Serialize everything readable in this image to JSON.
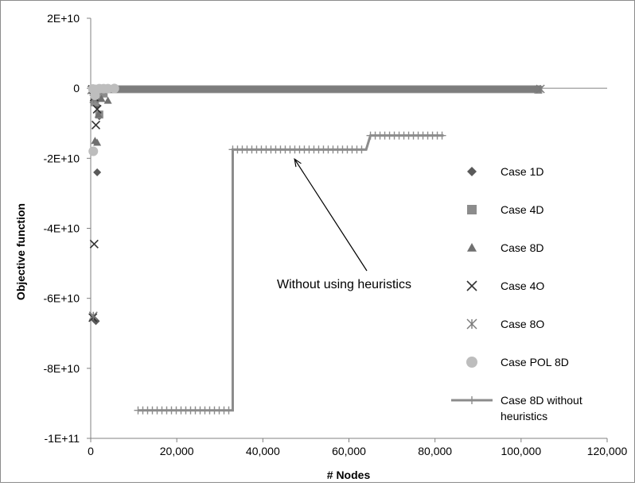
{
  "chart_data": {
    "type": "scatter",
    "xlabel": "# Nodes",
    "ylabel": "Objective function",
    "xlim": [
      0,
      120000
    ],
    "ylim": [
      -100000000000,
      20000000000
    ],
    "x_ticks": [
      0,
      20000,
      40000,
      60000,
      80000,
      100000,
      120000
    ],
    "x_tick_labels": [
      "0",
      "20,000",
      "40,000",
      "60,000",
      "80,000",
      "100,000",
      "120,000"
    ],
    "y_ticks": [
      20000000000,
      0,
      -20000000000,
      -40000000000,
      -60000000000,
      -80000000000,
      -100000000000
    ],
    "y_tick_labels": [
      "2E+10",
      "0",
      "-2E+10",
      "-4E+10",
      "-6E+10",
      "-8E+10",
      "-1E+11"
    ],
    "grid": false,
    "legend_position": "right",
    "annotation": {
      "text": "Without using heuristics",
      "x": 47000,
      "y": -17500000000
    },
    "series": [
      {
        "name": "Case 1D",
        "marker": "diamond",
        "color": "#5a5a5a",
        "points": [
          [
            600,
            -500000000
          ],
          [
            1000,
            -1500000000
          ],
          [
            1200,
            -3000000000
          ],
          [
            1500,
            -5000000000
          ],
          [
            2000,
            -8000000000
          ],
          [
            1500,
            -24000000000
          ],
          [
            800,
            -66000000000
          ],
          [
            1200,
            -66500000000
          ]
        ]
      },
      {
        "name": "Case 4D",
        "marker": "square",
        "color": "#8c8c8c",
        "points": [
          [
            500,
            -300000000
          ],
          [
            1500,
            -1000000000
          ],
          [
            3000,
            -1500000000
          ],
          [
            2000,
            -7500000000
          ],
          [
            1000,
            -4000000000
          ]
        ],
        "line": [
          [
            0,
            -400000000
          ],
          [
            60000,
            -400000000
          ],
          [
            104000,
            -400000000
          ]
        ]
      },
      {
        "name": "Case 8D",
        "marker": "triangle",
        "color": "#707070",
        "points": [
          [
            500,
            -700000000
          ],
          [
            1200,
            -2500000000
          ],
          [
            2500,
            -3000000000
          ],
          [
            4000,
            -3500000000
          ],
          [
            1800,
            -7500000000
          ],
          [
            1000,
            -15000000000
          ],
          [
            1500,
            -15500000000
          ]
        ]
      },
      {
        "name": "Case 4O",
        "marker": "x",
        "color": "#333333",
        "points": [
          [
            400,
            -300000000
          ],
          [
            800,
            -2500000000
          ],
          [
            1200,
            -10500000000
          ],
          [
            1500,
            -6000000000
          ],
          [
            800,
            -44500000000
          ],
          [
            500,
            -65500000000
          ]
        ]
      },
      {
        "name": "Case 8O",
        "marker": "asterisk",
        "color": "#7a7a7a",
        "points": [
          [
            200,
            -500000000
          ],
          [
            700,
            -3000000000
          ],
          [
            1200,
            -1500000000
          ],
          [
            600,
            -65000000000
          ]
        ],
        "line": [
          [
            0,
            -200000000
          ],
          [
            50000,
            -200000000
          ],
          [
            104500,
            -200000000
          ]
        ]
      },
      {
        "name": "Case POL 8D",
        "marker": "circle",
        "color": "#bdbdbd",
        "points": [
          [
            500,
            -200000000
          ],
          [
            1000,
            -300000000
          ],
          [
            2000,
            -100000000
          ],
          [
            3000,
            -100000000
          ],
          [
            4000,
            -100000000
          ],
          [
            5500,
            -50000000
          ],
          [
            1000,
            -2000000000
          ],
          [
            600,
            -18000000000
          ]
        ]
      },
      {
        "name": "Case 8D without heuristics",
        "marker": "plus-line",
        "color": "#8c8c8c",
        "steps": [
          [
            11000,
            -92000000000
          ],
          [
            33000,
            -92000000000
          ],
          [
            33000,
            -17500000000
          ],
          [
            64000,
            -17500000000
          ],
          [
            65000,
            -13500000000
          ],
          [
            82000,
            -13500000000
          ]
        ]
      }
    ]
  }
}
